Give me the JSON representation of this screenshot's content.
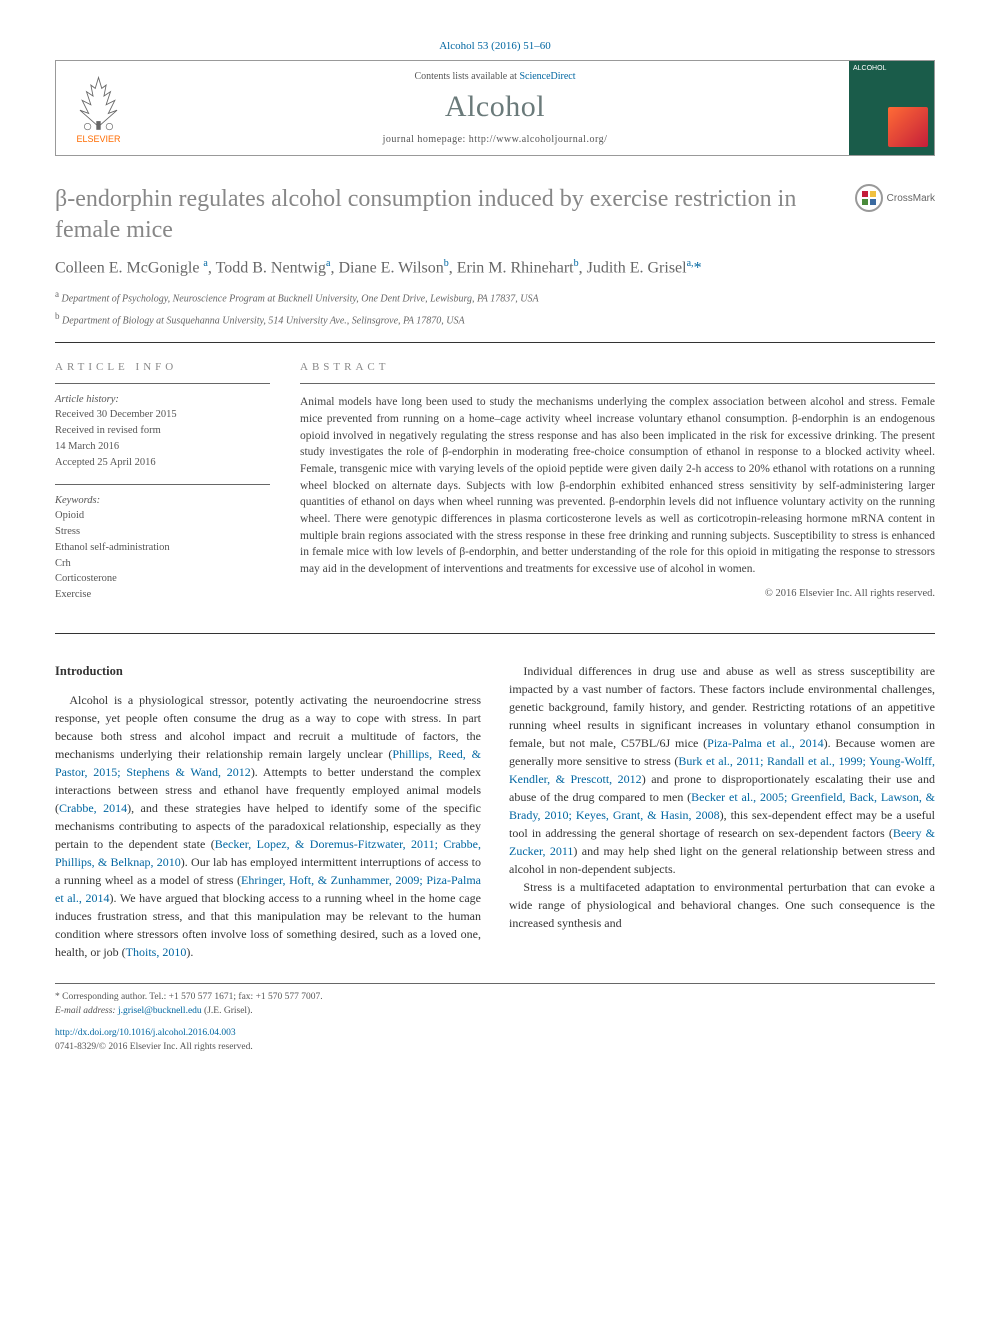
{
  "citation": "Alcohol 53 (2016) 51–60",
  "header": {
    "contents_prefix": "Contents lists available at ",
    "contents_link": "ScienceDirect",
    "journal": "Alcohol",
    "homepage_prefix": "journal homepage: ",
    "homepage_url": "http://www.alcoholjournal.org/",
    "publisher": "ELSEVIER",
    "cover_label": "ALCOHOL"
  },
  "crossmark": "CrossMark",
  "title": "β-endorphin regulates alcohol consumption induced by exercise restriction in female mice",
  "authors_html": "Colleen E. McGonigle <sup>a</sup>, Todd B. Nentwig<sup>a</sup>, Diane E. Wilson<sup>b</sup>, Erin M. Rhinehart<sup>b</sup>, Judith E. Grisel<sup>a,</sup><span class='corr-star'>*</span>",
  "affiliations": [
    {
      "sup": "a",
      "text": "Department of Psychology, Neuroscience Program at Bucknell University, One Dent Drive, Lewisburg, PA 17837, USA"
    },
    {
      "sup": "b",
      "text": "Department of Biology at Susquehanna University, 514 University Ave., Selinsgrove, PA 17870, USA"
    }
  ],
  "article_info": {
    "head": "ARTICLE INFO",
    "history_head": "Article history:",
    "history": [
      "Received 30 December 2015",
      "Received in revised form",
      "14 March 2016",
      "Accepted 25 April 2016"
    ],
    "keywords_head": "Keywords:",
    "keywords": [
      "Opioid",
      "Stress",
      "Ethanol self-administration",
      "Crh",
      "Corticosterone",
      "Exercise"
    ]
  },
  "abstract": {
    "head": "ABSTRACT",
    "text": "Animal models have long been used to study the mechanisms underlying the complex association between alcohol and stress. Female mice prevented from running on a home–cage activity wheel increase voluntary ethanol consumption. β-endorphin is an endogenous opioid involved in negatively regulating the stress response and has also been implicated in the risk for excessive drinking. The present study investigates the role of β-endorphin in moderating free-choice consumption of ethanol in response to a blocked activity wheel. Female, transgenic mice with varying levels of the opioid peptide were given daily 2-h access to 20% ethanol with rotations on a running wheel blocked on alternate days. Subjects with low β-endorphin exhibited enhanced stress sensitivity by self-administering larger quantities of ethanol on days when wheel running was prevented. β-endorphin levels did not influence voluntary activity on the running wheel. There were genotypic differences in plasma corticosterone levels as well as corticotropin-releasing hormone mRNA content in multiple brain regions associated with the stress response in these free drinking and running subjects. Susceptibility to stress is enhanced in female mice with low levels of β-endorphin, and better understanding of the role for this opioid in mitigating the response to stressors may aid in the development of interventions and treatments for excessive use of alcohol in women.",
    "copyright": "© 2016 Elsevier Inc. All rights reserved."
  },
  "intro": {
    "head": "Introduction",
    "p1_pre": "Alcohol is a physiological stressor, potently activating the neuroendocrine stress response, yet people often consume the drug as a way to cope with stress. In part because both stress and alcohol impact and recruit a multitude of factors, the mechanisms underlying their relationship remain largely unclear (",
    "p1_c1": "Phillips, Reed, & Pastor, 2015; Stephens & Wand, 2012",
    "p1_mid1": "). Attempts to better understand the complex interactions between stress and ethanol have frequently employed animal models (",
    "p1_c2": "Crabbe, 2014",
    "p1_mid2": "), and these strategies have helped to identify some of the specific mechanisms contributing to aspects of the paradoxical relationship, especially as they pertain to the dependent state (",
    "p1_c3": "Becker, Lopez, & Doremus-Fitzwater, 2011; Crabbe, Phillips, & Belknap, 2010",
    "p1_mid3": "). Our lab has employed intermittent interruptions of access to a running wheel as a model of stress (",
    "p1_c4": "Ehringer, Hoft, & Zunhammer, 2009; Piza-Palma et al., 2014",
    "p1_mid4": "). We have argued that blocking access to a running wheel in the home cage induces frustration stress, and that ",
    "p1_post": "this manipulation may be relevant to the human condition where stressors often involve loss of something desired, such as a loved one, health, or job (",
    "p1_c5": "Thoits, 2010",
    "p1_end": ").",
    "p2_pre": "Individual differences in drug use and abuse as well as stress susceptibility are impacted by a vast number of factors. These factors include environmental challenges, genetic background, family history, and gender. Restricting rotations of an appetitive running wheel results in significant increases in voluntary ethanol consumption in female, but not male, C57BL/6J mice (",
    "p2_c1": "Piza-Palma et al., 2014",
    "p2_mid1": "). Because women are generally more sensitive to stress (",
    "p2_c2": "Burk et al., 2011; Randall et al., 1999; Young-Wolff, Kendler, & Prescott, 2012",
    "p2_mid2": ") and prone to disproportionately escalating their use and abuse of the drug compared to men (",
    "p2_c3": "Becker et al., 2005; Greenfield, Back, Lawson, & Brady, 2010; Keyes, Grant, & Hasin, 2008",
    "p2_mid3": "), this sex-dependent effect may be a useful tool in addressing the general shortage of research on sex-dependent factors (",
    "p2_c4": "Beery & Zucker, 2011",
    "p2_mid4": ") and may help shed light on the general relationship between stress and alcohol in non-dependent subjects.",
    "p3": "Stress is a multifaceted adaptation to environmental perturbation that can evoke a wide range of physiological and behavioral changes. One such consequence is the increased synthesis and"
  },
  "footer": {
    "corr": "* Corresponding author. Tel.: +1 570 577 1671; fax: +1 570 577 7007.",
    "email_label": "E-mail address: ",
    "email": "j.grisel@bucknell.edu",
    "email_suffix": " (J.E. Grisel).",
    "doi": "http://dx.doi.org/10.1016/j.alcohol.2016.04.003",
    "issn": "0741-8329/© 2016 Elsevier Inc. All rights reserved."
  },
  "colors": {
    "link": "#0066a1",
    "title_gray": "#878787",
    "journal_gray": "#6a7a7a",
    "orange": "#ff6b00",
    "cover_bg": "#1a5c4a"
  }
}
